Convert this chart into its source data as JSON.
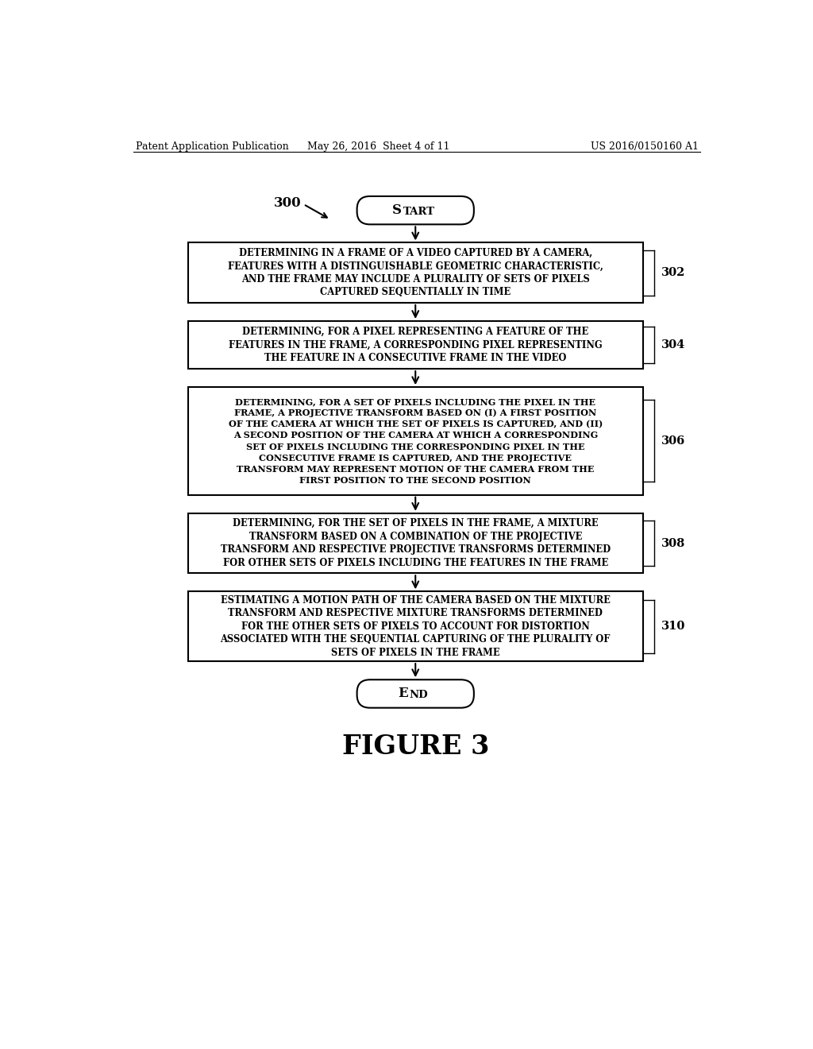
{
  "header_left": "Patent Application Publication",
  "header_mid": "May 26, 2016  Sheet 4 of 11",
  "header_right": "US 2016/0150160 A1",
  "figure_label": "FIGURE 3",
  "flow_label": "300",
  "start_text": "START",
  "end_text": "END",
  "boxes": [
    {
      "text": "DETERMINING IN A FRAME OF A VIDEO CAPTURED BY A CAMERA,\nFEATURES WITH A DISTINGUISHABLE GEOMETRIC CHARACTERISTIC,\nAND THE FRAME MAY INCLUDE A PLURALITY OF SETS OF PIXELS\nCAPTURED SEQUENTIALLY IN TIME",
      "label": "302"
    },
    {
      "text": "DETERMINING, FOR A PIXEL REPRESENTING A FEATURE OF THE\nFEATURES IN THE FRAME, A CORRESPONDING PIXEL REPRESENTING\nTHE FEATURE IN A CONSECUTIVE FRAME IN THE VIDEO",
      "label": "304"
    },
    {
      "text": "DETERMINING, FOR A SET OF PIXELS INCLUDING THE PIXEL IN THE\nFRAME, A PROJECTIVE TRANSFORM BASED ON (I) A FIRST POSITION\nOF THE CAMERA AT WHICH THE SET OF PIXELS IS CAPTURED, AND (II)\nA SECOND POSITION OF THE CAMERA AT WHICH A CORRESPONDING\nSET OF PIXELS INCLUDING THE CORRESPONDING PIXEL IN THE\nCONSECUTIVE FRAME IS CAPTURED, AND THE PROJECTIVE\nTRANSFORM MAY REPRESENT MOTION OF THE CAMERA FROM THE\nFIRST POSITION TO THE SECOND POSITION",
      "label": "306"
    },
    {
      "text": "DETERMINING, FOR THE SET OF PIXELS IN THE FRAME, A MIXTURE\nTRANSFORM BASED ON A COMBINATION OF THE PROJECTIVE\nTRANSFORM AND RESPECTIVE PROJECTIVE TRANSFORMS DETERMINED\nFOR OTHER SETS OF PIXELS INCLUDING THE FEATURES IN THE FRAME",
      "label": "308"
    },
    {
      "text": "ESTIMATING A MOTION PATH OF THE CAMERA BASED ON THE MIXTURE\nTRANSFORM AND RESPECTIVE MIXTURE TRANSFORMS DETERMINED\nFOR THE OTHER SETS OF PIXELS TO ACCOUNT FOR DISTORTION\nASSOCIATED WITH THE SEQUENTIAL CAPTURING OF THE PLURALITY OF\nSETS OF PIXELS IN THE FRAME",
      "label": "310"
    }
  ],
  "bg_color": "#ffffff",
  "box_edge_color": "#000000",
  "text_color": "#000000",
  "arrow_color": "#000000"
}
